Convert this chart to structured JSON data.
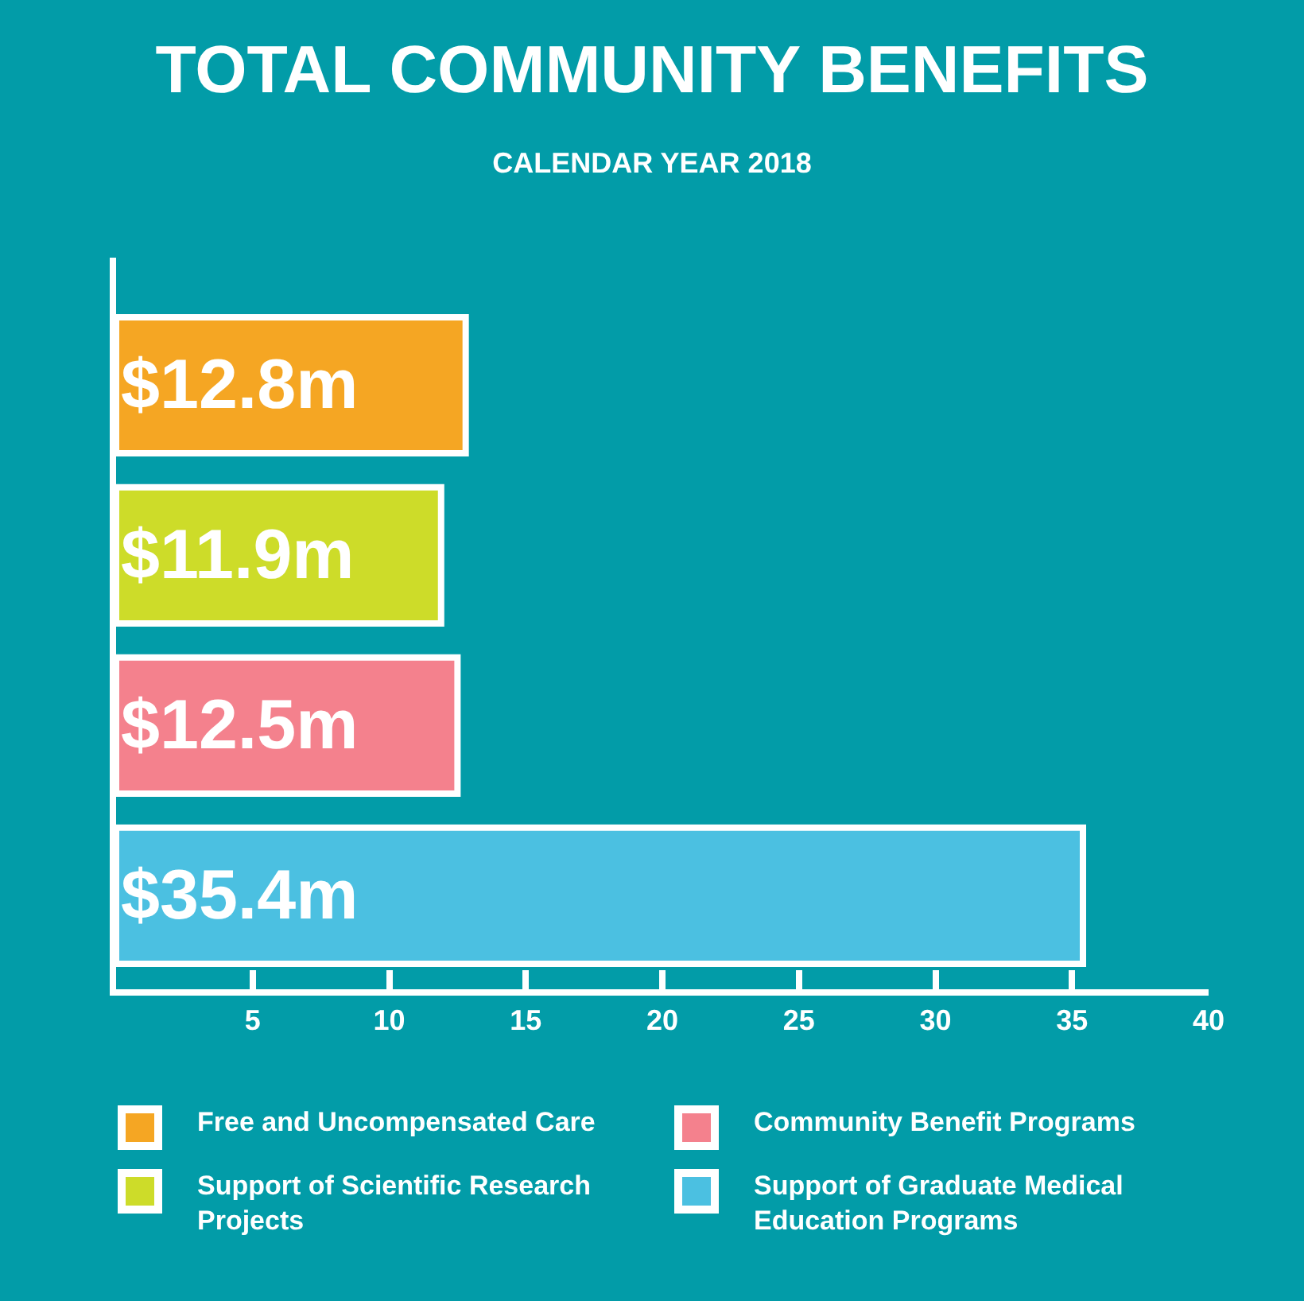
{
  "chart_data": {
    "type": "bar",
    "orientation": "horizontal",
    "title": "TOTAL COMMUNITY BENEFITS",
    "subtitle": "CALENDAR YEAR 2018",
    "categories": [
      null,
      null,
      null,
      null
    ],
    "series": [
      {
        "name": "Free and Uncompensated Care",
        "color": "#f5a623",
        "values": [
          12.8,
          null,
          null,
          null
        ],
        "value_labels": [
          "$12.8m",
          null,
          null,
          null
        ]
      },
      {
        "name": "Support of Scientific Research Projects",
        "color": "#cddc29",
        "values": [
          null,
          11.9,
          null,
          null
        ],
        "value_labels": [
          null,
          "$11.9m",
          null,
          null
        ]
      },
      {
        "name": "Community Benefit Programs",
        "color": "#f4818d",
        "values": [
          null,
          null,
          12.5,
          null
        ],
        "value_labels": [
          null,
          null,
          "$12.5m",
          null
        ]
      },
      {
        "name": "Support of Graduate Medical Education Programs",
        "color": "#4bc0e1",
        "values": [
          null,
          null,
          null,
          35.4
        ],
        "value_labels": [
          null,
          null,
          null,
          "$35.4m"
        ]
      }
    ],
    "xlim": [
      0,
      40
    ],
    "xticks": [
      5,
      10,
      15,
      20,
      25,
      30,
      35,
      40
    ],
    "grid": false,
    "legend": "bottom"
  }
}
